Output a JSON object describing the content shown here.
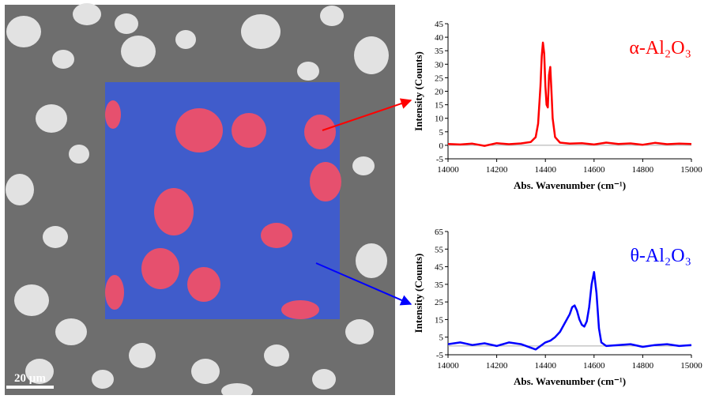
{
  "image": {
    "scale_bar": "20 µm"
  },
  "chart_data": [
    {
      "type": "line",
      "annotation": "α-Al₂O₃",
      "ylabel": "Intensity (Counts)",
      "xlabel": "Abs. Wavenumber (cm⁻¹)",
      "xlim": [
        14000,
        15000
      ],
      "xticks": [
        14000,
        14200,
        14400,
        14600,
        14800,
        15000
      ],
      "ylim": [
        -5,
        45
      ],
      "yticks": [
        -5,
        0,
        5,
        10,
        15,
        20,
        25,
        30,
        35,
        40,
        45
      ],
      "series": [
        {
          "color": "#ff0000",
          "x": [
            14000,
            14050,
            14100,
            14150,
            14200,
            14250,
            14300,
            14340,
            14360,
            14370,
            14380,
            14385,
            14390,
            14395,
            14400,
            14405,
            14410,
            14415,
            14420,
            14425,
            14430,
            14440,
            14460,
            14500,
            14550,
            14600,
            14650,
            14700,
            14750,
            14800,
            14850,
            14900,
            14950,
            15000
          ],
          "values": [
            0.5,
            0.3,
            0.6,
            -0.2,
            0.8,
            0.4,
            0.7,
            1.2,
            3,
            8,
            22,
            33,
            38,
            34,
            22,
            15,
            14,
            26,
            29,
            20,
            10,
            3,
            1,
            0.6,
            0.8,
            0.3,
            1,
            0.5,
            0.7,
            0.2,
            0.9,
            0.4,
            0.6,
            0.5
          ]
        }
      ]
    },
    {
      "type": "line",
      "annotation": "θ-Al₂O₃",
      "ylabel": "Intensity (Counts)",
      "xlabel": "Abs. Wavenumber (cm⁻¹)",
      "xlim": [
        14000,
        15000
      ],
      "xticks": [
        14000,
        14200,
        14400,
        14600,
        14800,
        15000
      ],
      "ylim": [
        -5,
        65
      ],
      "yticks": [
        -5,
        5,
        15,
        25,
        35,
        45,
        55,
        65
      ],
      "series": [
        {
          "color": "#0000ff",
          "x": [
            14000,
            14050,
            14100,
            14150,
            14200,
            14250,
            14300,
            14340,
            14360,
            14380,
            14400,
            14420,
            14440,
            14460,
            14480,
            14500,
            14510,
            14520,
            14530,
            14540,
            14550,
            14560,
            14570,
            14580,
            14590,
            14600,
            14610,
            14620,
            14630,
            14650,
            14700,
            14750,
            14800,
            14850,
            14900,
            14950,
            15000
          ],
          "values": [
            1,
            2,
            0.5,
            1.5,
            0,
            2,
            1,
            -1,
            -2,
            0,
            2,
            3,
            5,
            8,
            13,
            18,
            22,
            23,
            20,
            15,
            12,
            11,
            14,
            22,
            35,
            42,
            30,
            10,
            2,
            0,
            0.5,
            1,
            -0.5,
            0.5,
            1,
            0,
            0.5
          ]
        }
      ]
    }
  ]
}
